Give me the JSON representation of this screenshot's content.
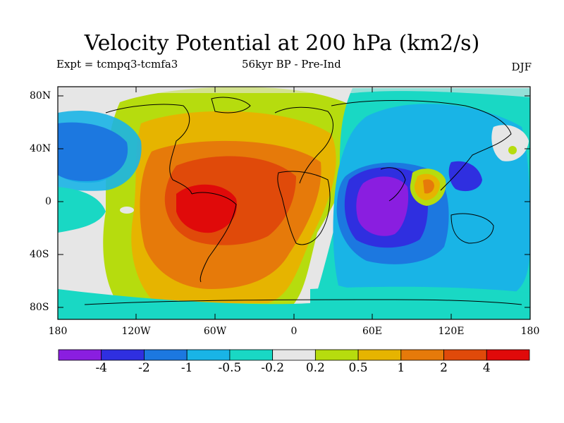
{
  "title": "Velocity Potential at 200 hPa (km2/s)",
  "subtitle_left": "Expt = tcmpq3-tcmfa3",
  "subtitle_center": "56kyr BP - Pre-Ind",
  "subtitle_right": "DJF",
  "lat_labels": [
    "80N",
    "40N",
    "0",
    "40S",
    "80S"
  ],
  "lon_labels": [
    "180",
    "120W",
    "60W",
    "0",
    "60E",
    "120E",
    "180"
  ],
  "colorbar": {
    "labels": [
      "-4",
      "-2",
      "-1",
      "-0.5",
      "-0.2",
      "0.2",
      "0.5",
      "1",
      "2",
      "4"
    ],
    "colors": [
      "#8a1ee0",
      "#2f2fe0",
      "#1c78e0",
      "#19b4e6",
      "#19d8c4",
      "#e6e6e6",
      "#b6dc0e",
      "#e6b400",
      "#e67a0a",
      "#e04a0a",
      "#e00a0a"
    ]
  },
  "chart_data": {
    "type": "heatmap",
    "projection": "cylindrical-equidistant",
    "lon_range": [
      -180,
      180
    ],
    "lat_range": [
      -90,
      90
    ],
    "levels": [
      -4,
      -2,
      -1,
      -0.5,
      -0.2,
      0.2,
      0.5,
      1,
      2,
      4
    ],
    "field": "velocity potential anomaly 200 hPa (DJF)",
    "approx_extrema": {
      "max": "South America (~4 km2/s)",
      "min": "Indian Ocean (~-4 km2/s)"
    }
  }
}
